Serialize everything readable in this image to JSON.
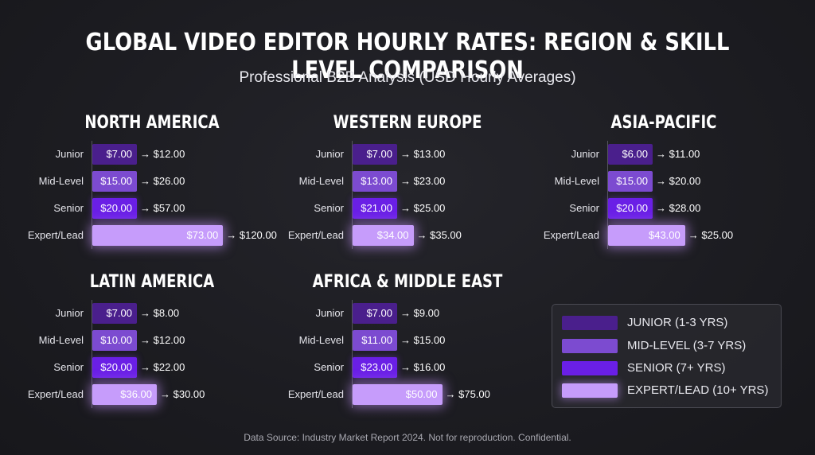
{
  "title": "GLOBAL VIDEO EDITOR HOURLY RATES: REGION & SKILL LEVEL COMPARISON",
  "subtitle": "Professional B2B Analysis (USD Hourly Averages)",
  "footer": "Data Source: Industry Market Report 2024. Not for reproduction. Confidential.",
  "colors": {
    "junior": "#4a1f8c",
    "mid": "#7c4bd0",
    "senior": "#6a1fe6",
    "expert": "#c69cfb"
  },
  "legend": [
    {
      "key": "junior",
      "label": "JUNIOR (1-3 YRS)"
    },
    {
      "key": "mid",
      "label": "MID-LEVEL (3-7 YRS)"
    },
    {
      "key": "senior",
      "label": "SENIOR (7+ YRS)"
    },
    {
      "key": "expert",
      "label": "EXPERT/LEAD (10+ YRS)"
    }
  ],
  "chart_data": [
    {
      "type": "bar",
      "title": "NORTH AMERICA",
      "categories": [
        "Junior",
        "Mid-Level",
        "Senior",
        "Expert/Lead"
      ],
      "values": [
        7.0,
        15.0,
        20.0,
        73.0
      ],
      "labels": [
        "$7.00",
        "$15.00",
        "$20.00",
        "$73.00"
      ],
      "targets": [
        "→ $12.00",
        "→ $26.00",
        "→ $57.00",
        "→ $120.00"
      ]
    },
    {
      "type": "bar",
      "title": "WESTERN EUROPE",
      "categories": [
        "Junior",
        "Mid-Level",
        "Senior",
        "Expert/Lead"
      ],
      "values": [
        7.0,
        13.0,
        21.0,
        34.0
      ],
      "labels": [
        "$7.00",
        "$13.00",
        "$21.00",
        "$34.00"
      ],
      "targets": [
        "→ $13.00",
        "→ $23.00",
        "→ $25.00",
        "→ $35.00"
      ]
    },
    {
      "type": "bar",
      "title": "ASIA-PACIFIC",
      "categories": [
        "Junior",
        "Mid-Level",
        "Senior",
        "Expert/Lead"
      ],
      "values": [
        6.0,
        15.0,
        20.0,
        43.0
      ],
      "labels": [
        "$6.00",
        "$15.00",
        "$20.00",
        "$43.00"
      ],
      "targets": [
        "→ $11.00",
        "→ $20.00",
        "→ $28.00",
        "→ $25.00"
      ]
    },
    {
      "type": "bar",
      "title": "LATIN AMERICA",
      "categories": [
        "Junior",
        "Mid-Level",
        "Senior",
        "Expert/Lead"
      ],
      "values": [
        7.0,
        10.0,
        20.0,
        36.0
      ],
      "labels": [
        "$7.00",
        "$10.00",
        "$20.00",
        "$36.00"
      ],
      "targets": [
        "→ $8.00",
        "→ $12.00",
        "→ $22.00",
        "→ $30.00"
      ]
    },
    {
      "type": "bar",
      "title": "AFRICA & MIDDLE EAST",
      "categories": [
        "Junior",
        "Mid-Level",
        "Senior",
        "Expert/Lead"
      ],
      "values": [
        7.0,
        11.0,
        23.0,
        50.0
      ],
      "labels": [
        "$7.00",
        "$11.00",
        "$23.00",
        "$50.00"
      ],
      "targets": [
        "→ $9.00",
        "→ $15.00",
        "→ $16.00",
        "→ $75.00"
      ]
    }
  ]
}
